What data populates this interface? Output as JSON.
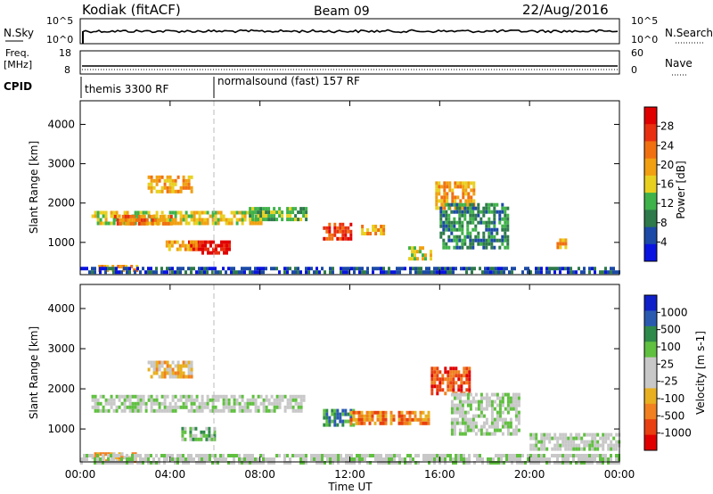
{
  "header": {
    "station": "Kodiak (fitACF)",
    "beam": "Beam 09",
    "date": "22/Aug/2016"
  },
  "summary_panels": {
    "nsky_label": "N.Sky",
    "nsky_ticks": [
      "10^5",
      "10^0"
    ],
    "nsearch_label": "N.Search",
    "nsearch_ticks": [
      "10^5",
      "10^0"
    ],
    "freq_label_line1": "Freq.",
    "freq_label_line2": "[MHz]",
    "freq_ticks": [
      "18",
      "8"
    ],
    "nave_label": "Nave",
    "nave_ticks": [
      "60",
      "0"
    ],
    "cpid_label": "CPID",
    "cpid_segments": [
      {
        "start_hour": 0,
        "label": "themis 3300 RF"
      },
      {
        "start_hour": 6,
        "label": "normalsound (fast) 157 RF"
      }
    ]
  },
  "colors": {
    "power_scale": [
      "#0a14e0",
      "#1c4aa6",
      "#2e7a4a",
      "#3fb24a",
      "#e8d020",
      "#f0a010",
      "#f07010",
      "#e83010",
      "#e00000"
    ],
    "velocity_scale": [
      "#1020c8",
      "#2a5ab0",
      "#2e8a4a",
      "#60c040",
      "#c8c8c8",
      "#c8c8c8",
      "#e8b020",
      "#f08020",
      "#e84010",
      "#e00000"
    ],
    "ground_scatter": "#c8c8c8"
  },
  "chart_data": [
    {
      "type": "heatmap",
      "panel": "power",
      "ylabel": "Slant Range [km]",
      "xlabel": "Time UT",
      "x_tick_labels": [
        "00:00",
        "04:00",
        "08:00",
        "12:00",
        "16:00",
        "20:00",
        "00:00"
      ],
      "x_ticks_hours": [
        0,
        4,
        8,
        12,
        16,
        20,
        24
      ],
      "xlim_hours": [
        0,
        24
      ],
      "y_ticks": [
        1000,
        2000,
        3000,
        4000
      ],
      "ylim_km": [
        180,
        4600
      ],
      "colorbar_label": "Power [dB]",
      "colorbar_ticks": [
        "4",
        "8",
        "12",
        "16",
        "20",
        "24",
        "28"
      ],
      "regions": [
        {
          "t0": 0.8,
          "t1": 2.5,
          "r0": 250,
          "r1": 430,
          "level": 5
        },
        {
          "t0": 0.5,
          "t1": 8.0,
          "r0": 1450,
          "r1": 1800,
          "level": 4
        },
        {
          "t0": 1.5,
          "t1": 4.0,
          "r0": 1500,
          "r1": 1700,
          "level": 6
        },
        {
          "t0": 3.0,
          "t1": 5.0,
          "r0": 2300,
          "r1": 2700,
          "level": 5
        },
        {
          "t0": 4.8,
          "t1": 6.6,
          "r0": 700,
          "r1": 1050,
          "level": 8
        },
        {
          "t0": 3.8,
          "t1": 5.2,
          "r0": 800,
          "r1": 1050,
          "level": 5
        },
        {
          "t0": 10.8,
          "t1": 12.0,
          "r0": 1100,
          "r1": 1500,
          "level": 7
        },
        {
          "t0": 12.5,
          "t1": 13.5,
          "r0": 1250,
          "r1": 1450,
          "level": 5
        },
        {
          "t0": 14.6,
          "t1": 15.6,
          "r0": 600,
          "r1": 900,
          "level": 4
        },
        {
          "t0": 15.8,
          "t1": 17.5,
          "r0": 1900,
          "r1": 2550,
          "level": 5
        },
        {
          "t0": 21.2,
          "t1": 21.6,
          "r0": 900,
          "r1": 1100,
          "level": 5
        },
        {
          "t0": 0.0,
          "t1": 24.0,
          "r0": 200,
          "r1": 380,
          "level": 1
        },
        {
          "t0": 16.0,
          "t1": 19.0,
          "r0": 900,
          "r1": 2000,
          "level": 2
        },
        {
          "t0": 7.5,
          "t1": 10.0,
          "r0": 1600,
          "r1": 1900,
          "level": 3
        }
      ]
    },
    {
      "type": "heatmap",
      "panel": "velocity",
      "ylabel": "Slant Range [km]",
      "xlabel": "Time UT",
      "x_tick_labels": [
        "00:00",
        "04:00",
        "08:00",
        "12:00",
        "16:00",
        "20:00",
        "00:00"
      ],
      "x_ticks_hours": [
        0,
        4,
        8,
        12,
        16,
        20,
        24
      ],
      "xlim_hours": [
        0,
        24
      ],
      "y_ticks": [
        1000,
        2000,
        3000,
        4000
      ],
      "ylim_km": [
        180,
        4600
      ],
      "colorbar_label": "Velocity [m s-1]",
      "colorbar_ticks": [
        "1000",
        "500",
        "100",
        "25",
        "-25",
        "-100",
        "-500",
        "-1000"
      ],
      "regions": [
        {
          "t0": 0.5,
          "t1": 2.5,
          "r0": 220,
          "r1": 420,
          "level": 6
        },
        {
          "t0": 0.5,
          "t1": 10.0,
          "r0": 1450,
          "r1": 1850,
          "level": 4
        },
        {
          "t0": 3.0,
          "t1": 5.0,
          "r0": 2300,
          "r1": 2700,
          "level": 6
        },
        {
          "t0": 4.5,
          "t1": 6.0,
          "r0": 700,
          "r1": 1050,
          "level": 3
        },
        {
          "t0": 10.8,
          "t1": 12.2,
          "r0": 1100,
          "r1": 1500,
          "level": 2
        },
        {
          "t0": 12.0,
          "t1": 15.5,
          "r0": 1100,
          "r1": 1450,
          "level": 7
        },
        {
          "t0": 15.6,
          "t1": 17.3,
          "r0": 1900,
          "r1": 2550,
          "level": 8
        },
        {
          "t0": 0.0,
          "t1": 24.0,
          "r0": 200,
          "r1": 380,
          "level": 4
        },
        {
          "t0": 16.5,
          "t1": 19.5,
          "r0": 900,
          "r1": 1900,
          "level": 4
        },
        {
          "t0": 20.0,
          "t1": 24.0,
          "r0": 500,
          "r1": 900,
          "level": 4
        }
      ]
    }
  ]
}
